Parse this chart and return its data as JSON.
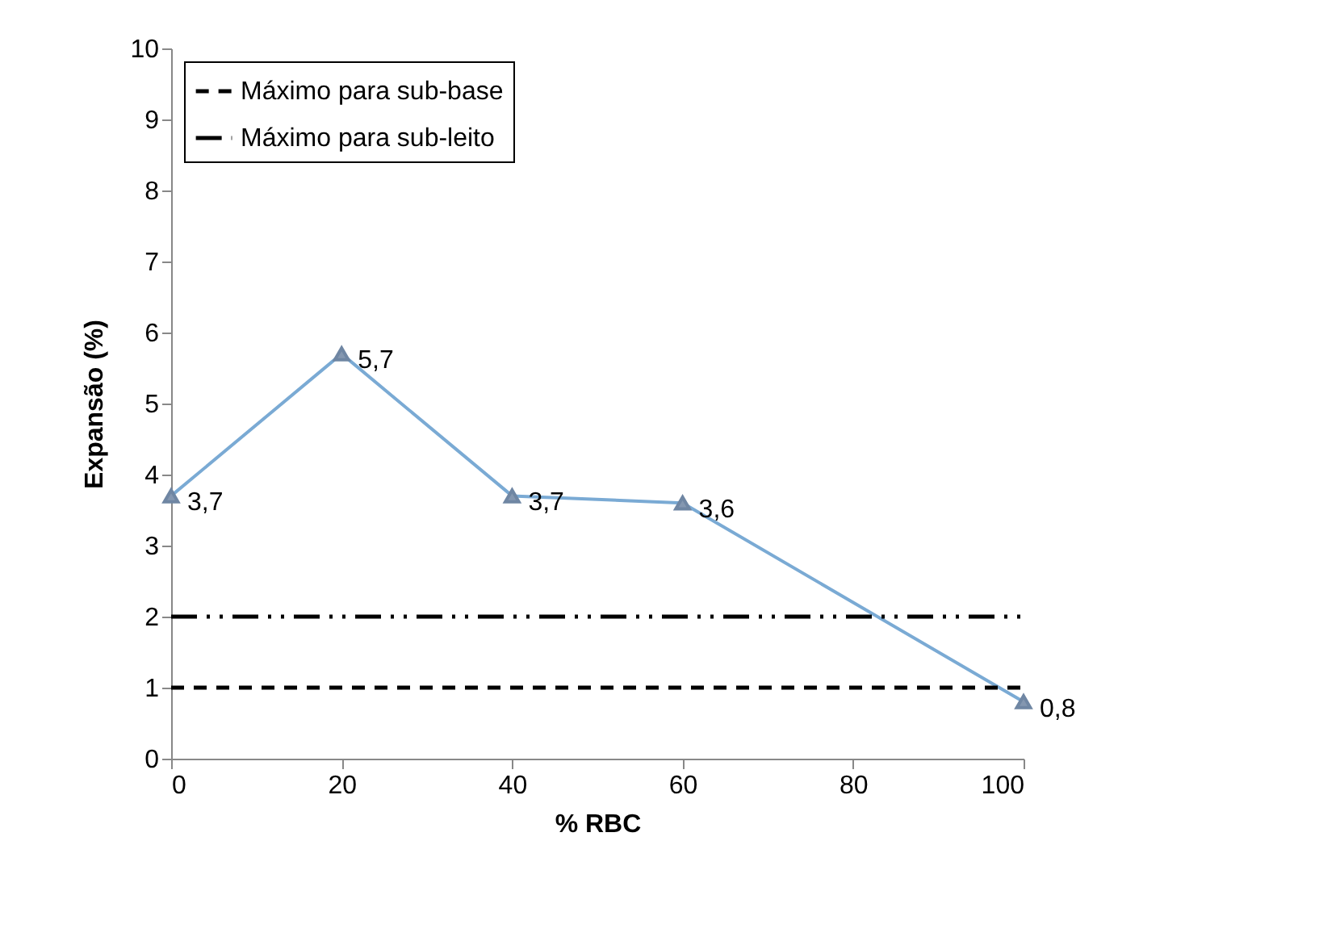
{
  "chart_data": {
    "type": "line",
    "xlabel": "% RBC",
    "ylabel": "Expansão (%)",
    "x": [
      0,
      20,
      40,
      60,
      100
    ],
    "xlim": [
      0,
      100
    ],
    "xticks": [
      0,
      20,
      40,
      60,
      80,
      100
    ],
    "ylim": [
      0,
      10
    ],
    "yticks": [
      0,
      1,
      2,
      3,
      4,
      5,
      6,
      7,
      8,
      9,
      10
    ],
    "grid": false,
    "legend": "top left",
    "marker": "triangle",
    "line_style": "solid",
    "series": [
      {
        "color": "#7aaad4",
        "values": [
          3.7,
          5.7,
          3.7,
          3.6,
          0.8
        ],
        "value_labels": [
          "3,7",
          "5,7",
          "3,7",
          "3,6",
          "0,8"
        ]
      }
    ],
    "ref_lines": [
      {
        "axis": "y",
        "value": 1,
        "label": "Máximo para sub-base",
        "color": "#000000",
        "line_style": "dashed"
      },
      {
        "axis": "y",
        "value": 2,
        "label": "Máximo para sub-leito",
        "color": "#000000",
        "line_style": "dashdotdot"
      }
    ]
  }
}
